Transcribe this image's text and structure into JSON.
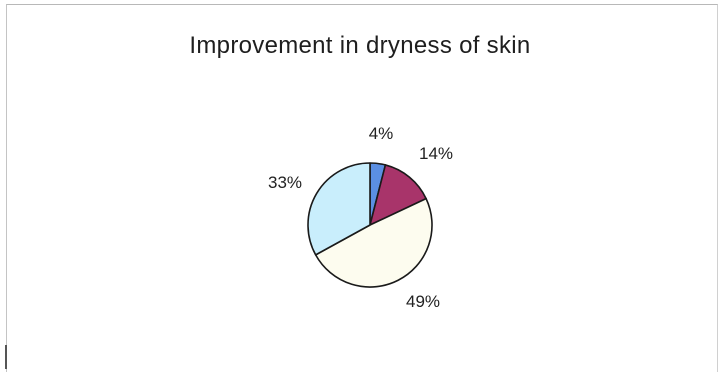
{
  "chart_data": {
    "type": "pie",
    "title": "Improvement in dryness of skin",
    "slices": [
      {
        "value": 4,
        "label": "4%",
        "color": "#5b8fe3"
      },
      {
        "value": 14,
        "label": "14%",
        "color": "#a8346a"
      },
      {
        "value": 49,
        "label": "49%",
        "color": "#fdfcef"
      },
      {
        "value": 33,
        "label": "33%",
        "color": "#c9eefc"
      }
    ],
    "start_angle_deg": 0,
    "direction": "clockwise",
    "legend": "none"
  }
}
